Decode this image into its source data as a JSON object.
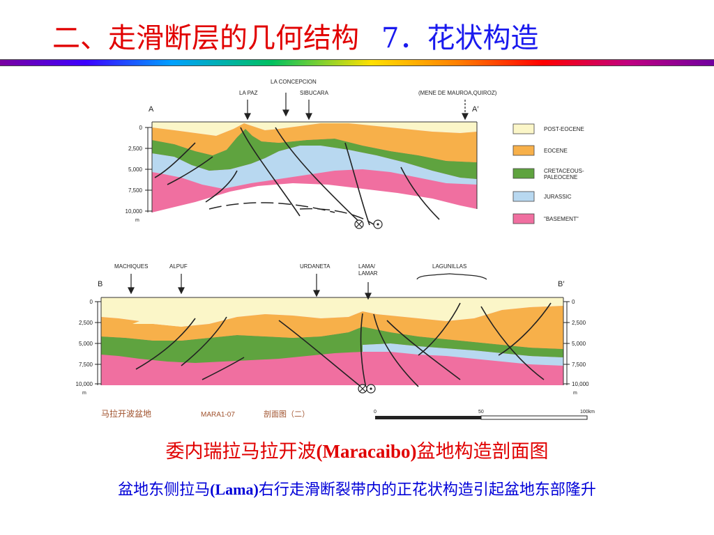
{
  "title": {
    "main": "二、走滑断层的几何结构",
    "sub": "7．花状构造"
  },
  "figure": {
    "section_a": {
      "start_label": "A",
      "end_label": "A′",
      "location_labels": [
        "LA CONCEPCION",
        "LA PAZ",
        "SIBUCARA",
        "(MENE DE MAUROA,QUIROZ)"
      ],
      "depth_ticks": [
        "0",
        "2,500",
        "5,000",
        "7,500",
        "10,000"
      ],
      "depth_unit": "m"
    },
    "section_b": {
      "start_label": "B",
      "end_label": "B′",
      "location_labels": [
        "MACHIQUES",
        "ALPUF",
        "URDANETA",
        "LAMA/",
        "LAMAR",
        "LAGUNILLAS"
      ],
      "depth_ticks": [
        "0",
        "2,500",
        "5,000",
        "7,500",
        "10,000"
      ],
      "depth_unit": "m"
    },
    "legend": [
      {
        "label": "POST-EOCENE",
        "color": "#fbf6c8"
      },
      {
        "label": "EOCENE",
        "color": "#f7b04a"
      },
      {
        "label": "CRETACEOUS-",
        "color": "#5fa33f"
      },
      {
        "label": "PALEOCENE",
        "color": "#5fa33f"
      },
      {
        "label": "JURASSIC",
        "color": "#b8d8f0"
      },
      {
        "label": "\"BASEMENT\"",
        "color": "#f06fa0"
      }
    ],
    "footer": {
      "basin": "马拉开波盆地",
      "code": "MARA1-07",
      "section": "剖面图（二）"
    },
    "scale": {
      "ticks": [
        "0",
        "50",
        "100km"
      ]
    }
  },
  "caption_red": {
    "before": "委内瑞拉马拉开波",
    "latin": "(Maracaibo)",
    "after": "盆地构造剖面图"
  },
  "caption_blue": {
    "before": "盆地东侧拉马",
    "latin": "(Lama)",
    "after": "右行走滑断裂带内的正花状构造引起盆地东部隆升"
  }
}
